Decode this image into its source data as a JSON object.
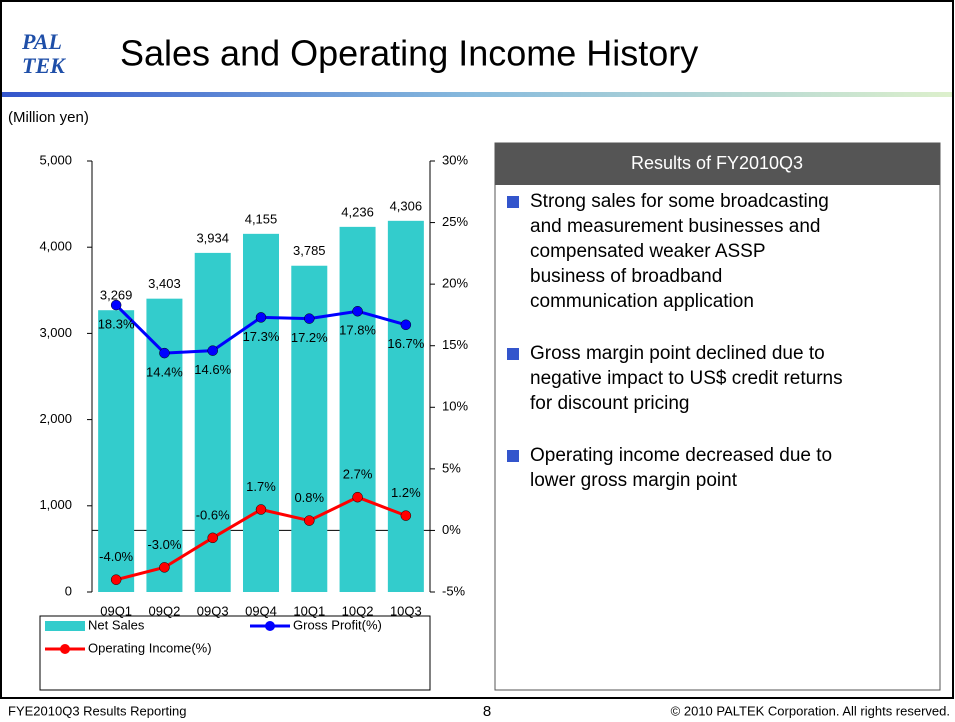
{
  "header": {
    "logo": [
      "PAL",
      "TEK"
    ],
    "title": "Sales and Operating Income History"
  },
  "chart_data": {
    "type": "bar",
    "y_axis_label": "(Million yen)",
    "categories": [
      "09Q1",
      "09Q2",
      "09Q3",
      "09Q4",
      "10Q1",
      "10Q2",
      "10Q3"
    ],
    "ylim": [
      0,
      5000
    ],
    "yticks": [
      0,
      {
        "value": 1000,
        "label": "1,000"
      },
      {
        "value": 2000,
        "label": "2,000"
      },
      {
        "value": 3000,
        "label": "3,000"
      },
      {
        "value": 4000,
        "label": "4,000"
      },
      {
        "value": 5000,
        "label": "5,000"
      }
    ],
    "y2lim": [
      -5,
      30
    ],
    "y2ticks": [
      {
        "value": -5,
        "label": "-5%"
      },
      {
        "value": 0,
        "label": "0%"
      },
      {
        "value": 5,
        "label": "5%"
      },
      {
        "value": 10,
        "label": "10%"
      },
      {
        "value": 15,
        "label": "15%"
      },
      {
        "value": 20,
        "label": "20%"
      },
      {
        "value": 25,
        "label": "25%"
      },
      {
        "value": 30,
        "label": "30%"
      }
    ],
    "series": [
      {
        "name": "Net Sales",
        "type": "bar",
        "color": "#33cccc",
        "values": [
          3269,
          3403,
          3934,
          4155,
          3785,
          4236,
          4306
        ],
        "value_labels": [
          "3,269",
          "3,403",
          "3,934",
          "4,155",
          "3,785",
          "4,236",
          "4,306"
        ]
      },
      {
        "name": "Gross Profit(%)",
        "type": "line",
        "axis": "y2",
        "color": "#0000ff",
        "values": [
          18.3,
          14.4,
          14.6,
          17.3,
          17.2,
          17.8,
          16.7
        ],
        "value_labels": [
          "18.3%",
          "14.4%",
          "14.6%",
          "17.3%",
          "17.2%",
          "17.8%",
          "16.7%"
        ]
      },
      {
        "name": "Operating Income(%)",
        "type": "line",
        "axis": "y2",
        "color": "#ff0000",
        "values": [
          -4.0,
          -3.0,
          -0.6,
          1.7,
          0.8,
          2.7,
          1.2
        ],
        "value_labels": [
          "-4.0%",
          "-3.0%",
          "-0.6%",
          "1.7%",
          "0.8%",
          "2.7%",
          "1.2%"
        ]
      }
    ]
  },
  "panel": {
    "title": "Results of FY2010Q3",
    "bullets": [
      [
        "Strong sales for some broadcasting",
        "and measurement businesses and",
        "compensated weaker ASSP",
        "business of broadband",
        "communication application"
      ],
      [
        "Gross margin point declined due to",
        "negative impact to US$ credit returns",
        "for discount pricing"
      ],
      [
        "Operating income decreased due to",
        "lower gross margin point"
      ]
    ]
  },
  "footer": {
    "left": "FYE2010Q3 Results Reporting",
    "page": "8",
    "right": "© 2010 PALTEK Corporation. All rights reserved."
  }
}
